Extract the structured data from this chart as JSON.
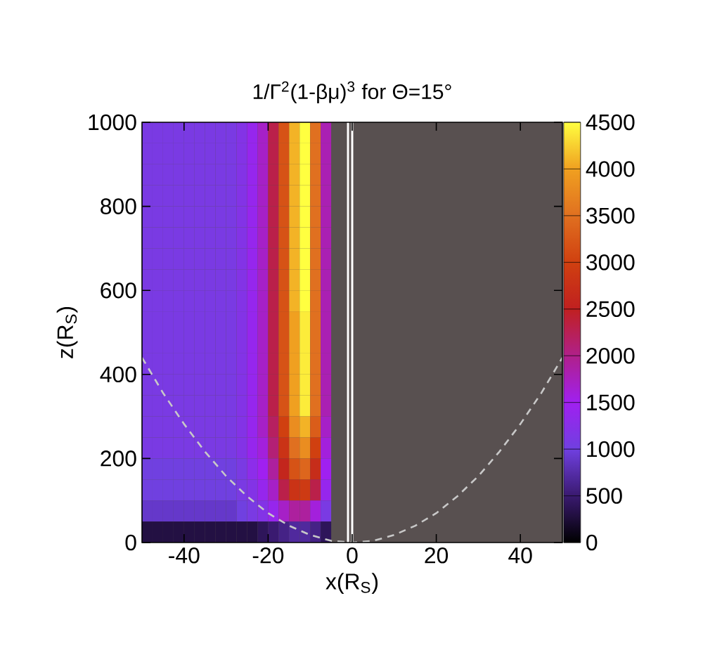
{
  "chart_data": {
    "type": "heatmap",
    "title": "1/Γ$^{2}$(1-βμ)$^{3}$ for Θ=15°",
    "xlabel": "x(R$_{S}$)",
    "ylabel": "z(R$_{S}$)",
    "x": [
      -48.75,
      -46.25,
      -43.75,
      -41.25,
      -38.75,
      -36.25,
      -33.75,
      -31.25,
      -28.75,
      -26.25,
      -23.75,
      -21.25,
      -18.75,
      -16.25,
      -13.75,
      -11.25,
      -8.75,
      -6.25,
      -3.75,
      -1.25,
      1.25,
      3.75,
      6.25,
      8.75,
      11.25,
      13.75,
      16.25,
      18.75,
      21.25,
      23.75,
      26.25,
      28.75,
      31.25,
      33.75,
      36.25,
      38.75,
      41.25,
      43.75,
      46.25,
      48.75
    ],
    "y": [
      975,
      925,
      875,
      825,
      775,
      725,
      675,
      625,
      575,
      525,
      475,
      425,
      375,
      325,
      275,
      225,
      175,
      125,
      75,
      25
    ],
    "cells": [
      [
        1100,
        1100,
        1100,
        1100,
        1100,
        1100,
        1100,
        1100,
        1100,
        1200,
        1400,
        1700,
        2300,
        3200,
        4100,
        4500,
        3500,
        1800,
        null,
        null,
        null,
        null,
        null,
        null,
        null,
        null,
        null,
        null,
        null,
        null,
        null,
        null,
        null,
        null,
        null,
        null,
        null,
        null,
        null,
        null
      ],
      [
        1100,
        1100,
        1100,
        1100,
        1100,
        1100,
        1100,
        1100,
        1100,
        1200,
        1400,
        1700,
        2300,
        3200,
        4100,
        4500,
        3500,
        1800,
        null,
        null,
        null,
        null,
        null,
        null,
        null,
        null,
        null,
        null,
        null,
        null,
        null,
        null,
        null,
        null,
        null,
        null,
        null,
        null,
        null,
        null
      ],
      [
        1100,
        1100,
        1100,
        1100,
        1100,
        1100,
        1100,
        1100,
        1100,
        1200,
        1400,
        1700,
        2300,
        3200,
        4100,
        4500,
        3500,
        1800,
        null,
        null,
        null,
        null,
        null,
        null,
        null,
        null,
        null,
        null,
        null,
        null,
        null,
        null,
        null,
        null,
        null,
        null,
        null,
        null,
        null,
        null
      ],
      [
        1100,
        1100,
        1100,
        1100,
        1100,
        1100,
        1100,
        1100,
        1100,
        1200,
        1400,
        1700,
        2300,
        3200,
        4100,
        4500,
        3500,
        1800,
        null,
        null,
        null,
        null,
        null,
        null,
        null,
        null,
        null,
        null,
        null,
        null,
        null,
        null,
        null,
        null,
        null,
        null,
        null,
        null,
        null,
        null
      ],
      [
        1100,
        1100,
        1100,
        1100,
        1100,
        1100,
        1100,
        1100,
        1100,
        1200,
        1400,
        1700,
        2300,
        3200,
        4100,
        4500,
        3500,
        1800,
        null,
        null,
        null,
        null,
        null,
        null,
        null,
        null,
        null,
        null,
        null,
        null,
        null,
        null,
        null,
        null,
        null,
        null,
        null,
        null,
        null,
        null
      ],
      [
        1100,
        1100,
        1100,
        1100,
        1100,
        1100,
        1100,
        1100,
        1100,
        1200,
        1400,
        1700,
        2300,
        3200,
        4100,
        4500,
        3500,
        1800,
        null,
        null,
        null,
        null,
        null,
        null,
        null,
        null,
        null,
        null,
        null,
        null,
        null,
        null,
        null,
        null,
        null,
        null,
        null,
        null,
        null,
        null
      ],
      [
        1100,
        1100,
        1100,
        1100,
        1100,
        1100,
        1100,
        1100,
        1100,
        1200,
        1400,
        1700,
        2300,
        3200,
        4100,
        4500,
        3500,
        1800,
        null,
        null,
        null,
        null,
        null,
        null,
        null,
        null,
        null,
        null,
        null,
        null,
        null,
        null,
        null,
        null,
        null,
        null,
        null,
        null,
        null,
        null
      ],
      [
        1100,
        1100,
        1100,
        1100,
        1100,
        1100,
        1100,
        1100,
        1100,
        1200,
        1400,
        1700,
        2300,
        3200,
        4100,
        4500,
        3500,
        1800,
        null,
        null,
        null,
        null,
        null,
        null,
        null,
        null,
        null,
        null,
        null,
        null,
        null,
        null,
        null,
        null,
        null,
        null,
        null,
        null,
        null,
        null
      ],
      [
        1100,
        1100,
        1100,
        1100,
        1100,
        1100,
        1100,
        1100,
        1100,
        1200,
        1400,
        1700,
        2300,
        3200,
        4100,
        4500,
        3500,
        1800,
        null,
        null,
        null,
        null,
        null,
        null,
        null,
        null,
        null,
        null,
        null,
        null,
        null,
        null,
        null,
        null,
        null,
        null,
        null,
        null,
        null,
        null
      ],
      [
        1100,
        1100,
        1100,
        1100,
        1100,
        1100,
        1100,
        1100,
        1100,
        1200,
        1400,
        1700,
        2300,
        3200,
        4000,
        4400,
        3500,
        1800,
        null,
        null,
        null,
        null,
        null,
        null,
        null,
        null,
        null,
        null,
        null,
        null,
        null,
        null,
        null,
        null,
        null,
        null,
        null,
        null,
        null,
        null
      ],
      [
        1100,
        1100,
        1100,
        1100,
        1100,
        1100,
        1100,
        1100,
        1100,
        1200,
        1400,
        1700,
        2300,
        3200,
        4000,
        4400,
        3500,
        1800,
        null,
        null,
        null,
        null,
        null,
        null,
        null,
        null,
        null,
        null,
        null,
        null,
        null,
        null,
        null,
        null,
        null,
        null,
        null,
        null,
        null,
        null
      ],
      [
        1100,
        1100,
        1100,
        1100,
        1100,
        1100,
        1100,
        1100,
        1100,
        1200,
        1400,
        1700,
        2300,
        3200,
        4000,
        4400,
        3500,
        1800,
        null,
        null,
        null,
        null,
        null,
        null,
        null,
        null,
        null,
        null,
        null,
        null,
        null,
        null,
        null,
        null,
        null,
        null,
        null,
        null,
        null,
        null
      ],
      [
        1100,
        1100,
        1100,
        1100,
        1100,
        1100,
        1100,
        1100,
        1100,
        1200,
        1400,
        1700,
        2300,
        3200,
        4000,
        4400,
        3500,
        1800,
        null,
        null,
        null,
        null,
        null,
        null,
        null,
        null,
        null,
        null,
        null,
        null,
        null,
        null,
        null,
        null,
        null,
        null,
        null,
        null,
        null,
        null
      ],
      [
        1100,
        1100,
        1100,
        1100,
        1100,
        1100,
        1100,
        1100,
        1100,
        1200,
        1400,
        1700,
        2300,
        3200,
        4000,
        4400,
        3500,
        1800,
        null,
        null,
        null,
        null,
        null,
        null,
        null,
        null,
        null,
        null,
        null,
        null,
        null,
        null,
        null,
        null,
        null,
        null,
        null,
        null,
        null,
        null
      ],
      [
        1100,
        1100,
        1100,
        1100,
        1100,
        1100,
        1100,
        1100,
        1100,
        1200,
        1400,
        1700,
        2200,
        3000,
        3800,
        4100,
        3300,
        1700,
        null,
        null,
        null,
        null,
        null,
        null,
        null,
        null,
        null,
        null,
        null,
        null,
        null,
        null,
        null,
        null,
        null,
        null,
        null,
        null,
        null,
        null
      ],
      [
        1100,
        1100,
        1100,
        1100,
        1100,
        1100,
        1100,
        1100,
        1100,
        1200,
        1400,
        1600,
        2100,
        2800,
        3500,
        3800,
        3000,
        1600,
        null,
        null,
        null,
        null,
        null,
        null,
        null,
        null,
        null,
        null,
        null,
        null,
        null,
        null,
        null,
        null,
        null,
        null,
        null,
        null,
        null,
        null
      ],
      [
        1000,
        1000,
        1000,
        1000,
        1000,
        1000,
        1000,
        1000,
        1000,
        1100,
        1300,
        1500,
        1900,
        2600,
        3200,
        3400,
        2700,
        1500,
        null,
        null,
        null,
        null,
        null,
        null,
        null,
        null,
        null,
        null,
        null,
        null,
        null,
        null,
        null,
        null,
        null,
        null,
        null,
        null,
        null,
        null
      ],
      [
        1000,
        1000,
        1000,
        1000,
        1000,
        1000,
        1000,
        1000,
        1000,
        1100,
        1200,
        1400,
        1700,
        2300,
        2800,
        2900,
        2300,
        1400,
        null,
        null,
        null,
        null,
        null,
        null,
        null,
        null,
        null,
        null,
        null,
        null,
        null,
        null,
        null,
        null,
        null,
        null,
        null,
        null,
        null,
        null
      ],
      [
        900,
        900,
        900,
        900,
        900,
        900,
        900,
        900,
        900,
        1000,
        1100,
        1200,
        1400,
        1700,
        1900,
        1900,
        1600,
        1100,
        null,
        null,
        null,
        null,
        null,
        null,
        null,
        null,
        null,
        null,
        null,
        null,
        null,
        null,
        null,
        null,
        null,
        null,
        null,
        null,
        null,
        null
      ],
      [
        300,
        300,
        300,
        300,
        300,
        300,
        300,
        300,
        300,
        300,
        300,
        400,
        500,
        600,
        700,
        700,
        600,
        400,
        null,
        null,
        null,
        null,
        null,
        null,
        null,
        null,
        null,
        null,
        null,
        null,
        null,
        null,
        null,
        null,
        null,
        null,
        null,
        null,
        null,
        null
      ]
    ],
    "clim": [
      0,
      4500
    ],
    "cticks": [
      0,
      500,
      1000,
      1500,
      2000,
      2500,
      3000,
      3500,
      4000,
      4500
    ],
    "xlim": [
      -50,
      50
    ],
    "xticks": [
      -40,
      -20,
      0,
      20,
      40
    ],
    "ylim": [
      0,
      1000
    ],
    "yticks": [
      0,
      200,
      400,
      600,
      800,
      1000
    ],
    "series": [
      {
        "type": "line",
        "color": "#c8c8c8",
        "line_style": "dashed",
        "x": [
          -50,
          -45,
          -40,
          -35,
          -30,
          -25,
          -20,
          -15,
          -10,
          -5,
          0,
          5,
          10,
          15,
          20,
          25,
          30,
          35,
          40,
          45,
          50
        ],
        "values": [
          440,
          356,
          282,
          216,
          158,
          110,
          70,
          40,
          18,
          4,
          0,
          4,
          18,
          40,
          70,
          110,
          158,
          216,
          282,
          356,
          440
        ]
      }
    ],
    "ref_lines": [
      {
        "axis": "x",
        "value": -1,
        "color": "#ffffff"
      },
      {
        "axis": "x",
        "value": 0,
        "color": "#ffffff"
      }
    ]
  }
}
